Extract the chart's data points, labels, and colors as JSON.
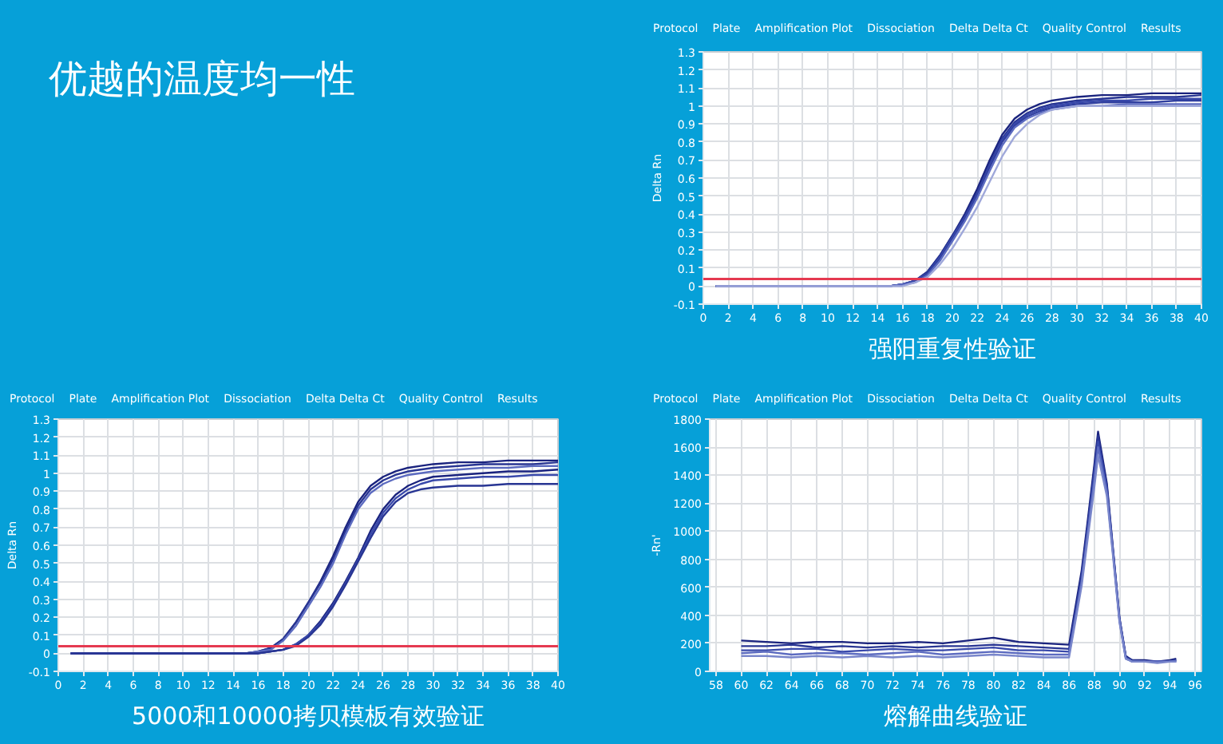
{
  "chart_data": [
    {
      "type": "other",
      "title": "优越的温度均一性"
    },
    {
      "type": "line",
      "title": "强阳重复性验证",
      "ylabel": "Delta Rn",
      "annotations": [
        "Protocol",
        "Plate",
        "Amplification Plot",
        "Dissociation",
        "Delta Delta Ct",
        "Quality Control",
        "Results"
      ],
      "x": [
        1,
        4,
        8,
        12,
        14,
        15,
        16,
        17,
        18,
        19,
        20,
        21,
        22,
        23,
        24,
        25,
        26,
        27,
        28,
        29,
        30,
        32,
        34,
        36,
        38,
        40
      ],
      "series": [
        {
          "color": "#1a237e",
          "values": [
            0,
            0,
            0,
            0,
            0,
            0,
            0.01,
            0.03,
            0.08,
            0.17,
            0.28,
            0.4,
            0.54,
            0.7,
            0.84,
            0.93,
            0.98,
            1.01,
            1.03,
            1.04,
            1.05,
            1.06,
            1.06,
            1.07,
            1.07,
            1.07
          ]
        },
        {
          "color": "#283593",
          "values": [
            0,
            0,
            0,
            0,
            0,
            0,
            0.01,
            0.03,
            0.08,
            0.17,
            0.28,
            0.39,
            0.52,
            0.68,
            0.82,
            0.91,
            0.96,
            0.99,
            1.01,
            1.02,
            1.03,
            1.04,
            1.05,
            1.05,
            1.05,
            1.06
          ]
        },
        {
          "color": "#3949ab",
          "values": [
            0,
            0,
            0,
            0,
            0,
            0,
            0.01,
            0.03,
            0.07,
            0.16,
            0.27,
            0.38,
            0.51,
            0.67,
            0.81,
            0.9,
            0.95,
            0.98,
            1.0,
            1.01,
            1.02,
            1.03,
            1.03,
            1.04,
            1.04,
            1.04
          ]
        },
        {
          "color": "#303f9f",
          "values": [
            0,
            0,
            0,
            0,
            0,
            0,
            0.01,
            0.02,
            0.07,
            0.15,
            0.26,
            0.37,
            0.5,
            0.66,
            0.8,
            0.89,
            0.94,
            0.97,
            0.99,
            1.0,
            1.01,
            1.02,
            1.02,
            1.02,
            1.03,
            1.03
          ]
        },
        {
          "color": "#5c6bc0",
          "values": [
            0,
            0,
            0,
            0,
            0,
            0,
            0.01,
            0.02,
            0.06,
            0.14,
            0.25,
            0.36,
            0.49,
            0.64,
            0.78,
            0.88,
            0.93,
            0.96,
            0.98,
            0.99,
            1.0,
            1.0,
            1.01,
            1.01,
            1.01,
            1.01
          ]
        },
        {
          "color": "#9fa8da",
          "values": [
            0,
            0,
            0,
            0,
            0,
            0,
            0,
            0.02,
            0.05,
            0.12,
            0.21,
            0.32,
            0.44,
            0.58,
            0.72,
            0.83,
            0.9,
            0.95,
            0.98,
            0.99,
            1.0,
            1.0,
            1.0,
            1.0,
            1.0,
            1.0
          ]
        }
      ],
      "xlim": [
        0,
        40
      ],
      "ylim": [
        -0.1,
        1.3
      ],
      "xticks": [
        0,
        2,
        4,
        6,
        8,
        10,
        12,
        14,
        16,
        18,
        20,
        22,
        24,
        26,
        28,
        30,
        32,
        34,
        36,
        38,
        40
      ],
      "yticks": [
        -0.1,
        0,
        0.1,
        0.2,
        0.3,
        0.4,
        0.5,
        0.6,
        0.7,
        0.8,
        0.9,
        1,
        1.1,
        1.2,
        1.3
      ],
      "grid": true,
      "ref_lines": [
        {
          "axis": "y",
          "value": 0.04,
          "color": "#e53950"
        }
      ]
    },
    {
      "type": "line",
      "title": "5000和10000拷贝模板有效验证",
      "ylabel": "Delta Rn",
      "annotations": [
        "Protocol",
        "Plate",
        "Amplification Plot",
        "Dissociation",
        "Delta Delta Ct",
        "Quality Control",
        "Results"
      ],
      "x": [
        1,
        4,
        8,
        12,
        14,
        15,
        16,
        17,
        18,
        19,
        20,
        21,
        22,
        23,
        24,
        25,
        26,
        27,
        28,
        29,
        30,
        32,
        34,
        36,
        38,
        40
      ],
      "series": [
        {
          "color": "#1a237e",
          "values": [
            0,
            0,
            0,
            0,
            0,
            0,
            0.01,
            0.03,
            0.08,
            0.17,
            0.28,
            0.4,
            0.54,
            0.7,
            0.84,
            0.93,
            0.98,
            1.01,
            1.03,
            1.04,
            1.05,
            1.06,
            1.06,
            1.07,
            1.07,
            1.07
          ]
        },
        {
          "color": "#283593",
          "values": [
            0,
            0,
            0,
            0,
            0,
            0,
            0.01,
            0.03,
            0.08,
            0.17,
            0.28,
            0.39,
            0.52,
            0.68,
            0.82,
            0.91,
            0.96,
            0.99,
            1.01,
            1.02,
            1.03,
            1.04,
            1.05,
            1.05,
            1.05,
            1.06
          ]
        },
        {
          "color": "#5c6bc0",
          "values": [
            0,
            0,
            0,
            0,
            0,
            0,
            0.01,
            0.02,
            0.07,
            0.15,
            0.26,
            0.37,
            0.5,
            0.66,
            0.8,
            0.89,
            0.94,
            0.97,
            0.99,
            1.0,
            1.01,
            1.02,
            1.03,
            1.03,
            1.04,
            1.04
          ]
        },
        {
          "color": "#1a237e",
          "values": [
            0,
            0,
            0,
            0,
            0,
            0,
            0,
            0.01,
            0.02,
            0.05,
            0.1,
            0.18,
            0.28,
            0.4,
            0.53,
            0.68,
            0.8,
            0.88,
            0.93,
            0.96,
            0.98,
            0.99,
            1.0,
            1.01,
            1.01,
            1.02
          ]
        },
        {
          "color": "#3949ab",
          "values": [
            0,
            0,
            0,
            0,
            0,
            0,
            0,
            0.01,
            0.02,
            0.05,
            0.1,
            0.17,
            0.27,
            0.39,
            0.52,
            0.66,
            0.78,
            0.86,
            0.91,
            0.94,
            0.96,
            0.97,
            0.98,
            0.98,
            0.99,
            0.99
          ]
        },
        {
          "color": "#283593",
          "values": [
            0,
            0,
            0,
            0,
            0,
            0,
            0,
            0.01,
            0.02,
            0.04,
            0.09,
            0.16,
            0.26,
            0.38,
            0.51,
            0.64,
            0.76,
            0.84,
            0.89,
            0.91,
            0.92,
            0.93,
            0.93,
            0.94,
            0.94,
            0.94
          ]
        }
      ],
      "xlim": [
        0,
        40
      ],
      "ylim": [
        -0.1,
        1.3
      ],
      "xticks": [
        0,
        2,
        4,
        6,
        8,
        10,
        12,
        14,
        16,
        18,
        20,
        22,
        24,
        26,
        28,
        30,
        32,
        34,
        36,
        38,
        40
      ],
      "yticks": [
        -0.1,
        0,
        0.1,
        0.2,
        0.3,
        0.4,
        0.5,
        0.6,
        0.7,
        0.8,
        0.9,
        1,
        1.1,
        1.2,
        1.3
      ],
      "grid": true,
      "ref_lines": [
        {
          "axis": "y",
          "value": 0.04,
          "color": "#e53950"
        }
      ]
    },
    {
      "type": "line",
      "title": "熔解曲线验证",
      "ylabel": "-Rn'",
      "annotations": [
        "Protocol",
        "Plate",
        "Amplification Plot",
        "Dissociation",
        "Delta Delta Ct",
        "Quality Control",
        "Results"
      ],
      "x": [
        60,
        62,
        64,
        66,
        68,
        70,
        72,
        74,
        76,
        78,
        80,
        82,
        84,
        86,
        87,
        87.5,
        88,
        88.3,
        89,
        89.5,
        90,
        90.5,
        91,
        92,
        93,
        94,
        94.5
      ],
      "series": [
        {
          "color": "#1a237e",
          "values": [
            220,
            210,
            200,
            210,
            210,
            200,
            200,
            210,
            200,
            220,
            240,
            210,
            200,
            190,
            720,
            1090,
            1470,
            1710,
            1340,
            860,
            380,
            110,
            80,
            80,
            70,
            80,
            90
          ]
        },
        {
          "color": "#283593",
          "values": [
            180,
            180,
            190,
            170,
            180,
            170,
            180,
            170,
            180,
            180,
            190,
            180,
            170,
            160,
            690,
            1060,
            1440,
            1680,
            1320,
            850,
            380,
            100,
            80,
            70,
            70,
            70,
            80
          ]
        },
        {
          "color": "#3949ab",
          "values": [
            150,
            150,
            160,
            160,
            140,
            150,
            160,
            150,
            150,
            160,
            170,
            150,
            150,
            140,
            660,
            1030,
            1400,
            1640,
            1300,
            840,
            370,
            100,
            70,
            70,
            70,
            70,
            80
          ]
        },
        {
          "color": "#5c6bc0",
          "values": [
            130,
            140,
            120,
            130,
            130,
            120,
            130,
            140,
            120,
            130,
            140,
            130,
            120,
            120,
            640,
            1000,
            1360,
            1600,
            1280,
            830,
            360,
            90,
            70,
            70,
            70,
            70,
            70
          ]
        },
        {
          "color": "#7986cb",
          "values": [
            110,
            110,
            100,
            110,
            100,
            110,
            100,
            110,
            100,
            110,
            120,
            110,
            100,
            100,
            610,
            960,
            1310,
            1540,
            1250,
            810,
            350,
            90,
            70,
            70,
            60,
            70,
            70
          ]
        }
      ],
      "xlim": [
        57.5,
        96.5
      ],
      "ylim": [
        0,
        1800
      ],
      "xticks": [
        58,
        60,
        62,
        64,
        66,
        68,
        70,
        72,
        74,
        76,
        78,
        80,
        82,
        84,
        86,
        88,
        90,
        92,
        94,
        96
      ],
      "yticks": [
        0,
        200,
        400,
        600,
        800,
        1000,
        1200,
        1400,
        1600,
        1800
      ],
      "grid": true
    }
  ]
}
